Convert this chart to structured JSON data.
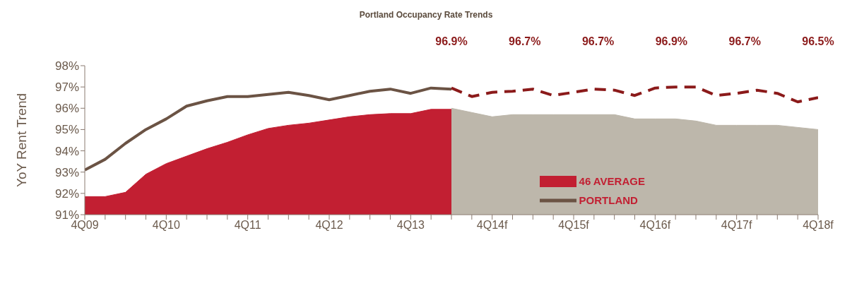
{
  "chart_data": {
    "type": "area",
    "title": "Portland Occupancy Rate Trends",
    "ylabel": "YoY Rent Trend",
    "categories": [
      "4Q09",
      null,
      null,
      null,
      "4Q10",
      null,
      null,
      null,
      "4Q11",
      null,
      null,
      null,
      "4Q12",
      null,
      null,
      null,
      "4Q13",
      null,
      null,
      null,
      "4Q14f",
      null,
      null,
      null,
      "4Q15f",
      null,
      null,
      null,
      "4Q16f",
      null,
      null,
      null,
      "4Q17f",
      null,
      null,
      null,
      "4Q18f"
    ],
    "series": [
      {
        "name": "46 AVERAGE",
        "color": "#c21f32",
        "values": [
          91.85,
          91.85,
          92.05,
          92.9,
          93.4,
          93.75,
          94.1,
          94.4,
          94.75,
          95.05,
          95.2,
          95.3,
          95.45,
          95.6,
          95.7,
          95.75,
          95.75,
          95.95,
          95.95,
          null,
          null,
          null,
          null,
          null,
          null,
          null,
          null,
          null,
          null,
          null,
          null,
          null,
          null,
          null,
          null,
          null,
          null
        ]
      },
      {
        "color": "#bdb7ab",
        "values": [
          null,
          null,
          null,
          null,
          null,
          null,
          null,
          null,
          null,
          null,
          null,
          null,
          null,
          null,
          null,
          null,
          null,
          null,
          96.0,
          95.8,
          95.6,
          95.7,
          95.7,
          95.7,
          95.7,
          95.7,
          95.7,
          95.5,
          95.5,
          95.5,
          95.4,
          95.2,
          95.2,
          95.2,
          95.2,
          95.1,
          95.0
        ]
      },
      {
        "name": "PORTLAND",
        "type": "line",
        "color": "#6b5344",
        "line_style": "solid",
        "values": [
          93.1,
          93.6,
          94.35,
          95.0,
          95.5,
          96.1,
          96.35,
          96.55,
          96.55,
          96.65,
          96.75,
          96.6,
          96.4,
          96.6,
          96.8,
          96.9,
          96.7,
          96.95,
          96.9,
          null,
          null,
          null,
          null,
          null,
          null,
          null,
          null,
          null,
          null,
          null,
          null,
          null,
          null,
          null,
          null,
          null,
          null
        ]
      },
      {
        "type": "line",
        "color": "#8b1a1a",
        "line_style": "dashed",
        "values": [
          null,
          null,
          null,
          null,
          null,
          null,
          null,
          null,
          null,
          null,
          null,
          null,
          null,
          null,
          null,
          null,
          null,
          null,
          96.95,
          96.55,
          96.75,
          96.8,
          96.9,
          96.6,
          96.75,
          96.9,
          96.85,
          96.6,
          96.95,
          97.0,
          97.0,
          96.6,
          96.7,
          96.85,
          96.7,
          96.3,
          96.5
        ]
      }
    ],
    "ylim": [
      91,
      98
    ],
    "yticks": [
      {
        "value": 91,
        "label": "91%"
      },
      {
        "value": 92,
        "label": "92%"
      },
      {
        "value": 93,
        "label": "93%"
      },
      {
        "value": 94,
        "label": "94%"
      },
      {
        "value": 95,
        "label": "95%"
      },
      {
        "value": 96,
        "label": "96%"
      },
      {
        "value": 97,
        "label": "97%"
      },
      {
        "value": 98,
        "label": "98%"
      }
    ],
    "annotations": [
      "96.9%",
      "96.7%",
      "96.7%",
      "96.9%",
      "96.7%",
      "96.5%"
    ],
    "grid": false,
    "legend": "right",
    "marker": "none"
  }
}
